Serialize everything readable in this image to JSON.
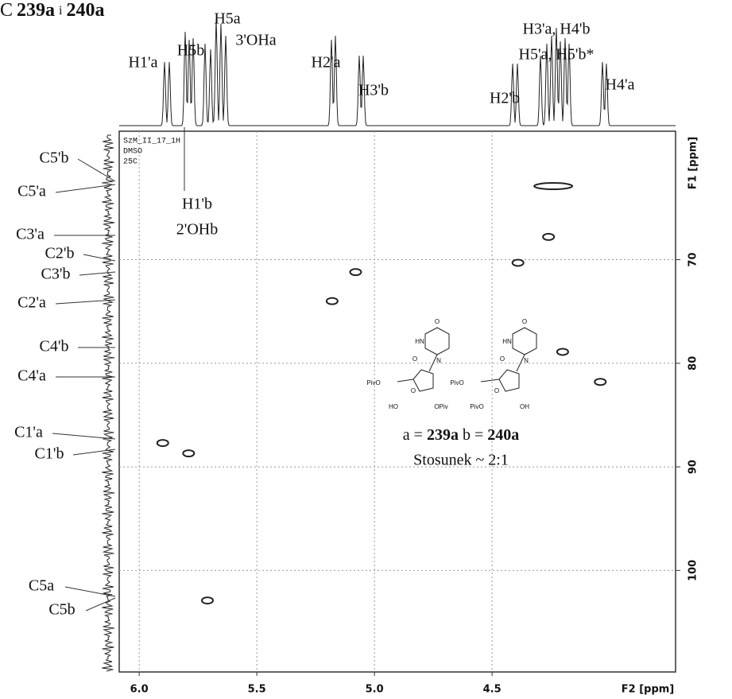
{
  "chart_data": {
    "type": "scatter",
    "title_parts": [
      "C",
      "239a",
      "i",
      "240a"
    ],
    "x_label": "F2 [ppm]",
    "y_label": "F1 [ppm]",
    "x": [
      4.24,
      4.26,
      4.39,
      5.08,
      5.18,
      4.2,
      4.04,
      5.9,
      5.79,
      5.71
    ],
    "values": [
      62.9,
      67.8,
      70.3,
      71.2,
      74.0,
      78.9,
      81.8,
      87.7,
      88.7,
      102.9
    ],
    "color": "#222222",
    "xlim": [
      6.085,
      3.72
    ],
    "ylim": [
      57.6,
      109.8
    ],
    "xticks": [
      {
        "value": 6,
        "label": "6.0"
      },
      5.5,
      {
        "value": 5,
        "label": "5.0"
      },
      4.5
    ],
    "yticks": [
      70,
      80,
      90,
      100
    ],
    "grid": true,
    "h_labels": [
      "H1'a",
      "H5b",
      "H5a",
      "3'OHa",
      "H2'a",
      "H3'b",
      "H2'b",
      "H3'a, H4'b",
      "H5'a, H5'b*",
      "H4'a",
      "H1'b",
      "2'OHb"
    ],
    "c_labels": [
      "C5'b",
      "C5'a",
      "C3'a",
      "C2'b",
      "C3'b",
      "C2'a",
      "C4'b",
      "C4'a",
      "C1'a",
      "C1'b",
      "C5a",
      "C5b"
    ],
    "inset_text": [
      "SzM_II_17_1H",
      "DMSO",
      "25C"
    ],
    "caption_parts": [
      "a =",
      "239a",
      "b =",
      "240a"
    ],
    "ratio": "Stosunek ~ 2:1",
    "molecule_a": [
      "O",
      "HN",
      "O",
      "N",
      "PivO",
      "O",
      "HO",
      "OPiv"
    ],
    "molecule_b": [
      "O",
      "HN",
      "O",
      "N",
      "PivO",
      "O",
      "PivO",
      "OH"
    ]
  }
}
